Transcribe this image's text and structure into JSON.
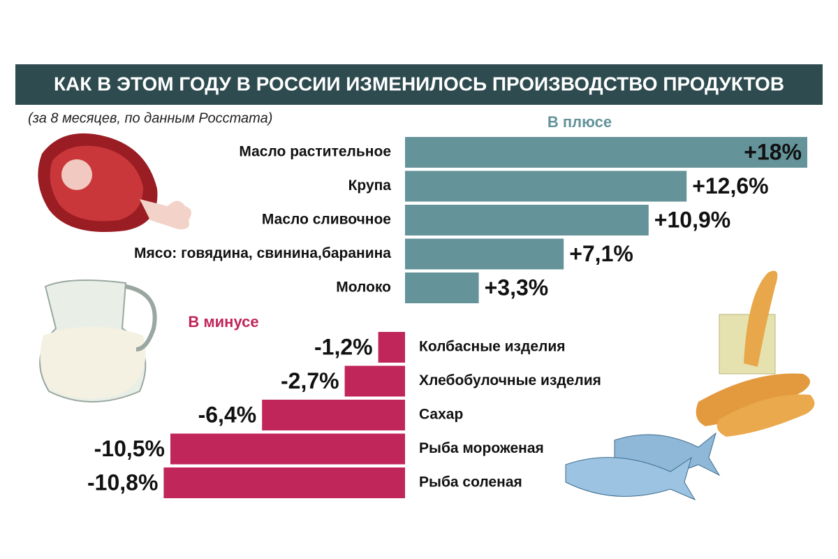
{
  "title": "КАК В ЭТОМ ГОДУ В РОССИИ ИЗМЕНИЛОСЬ ПРОИЗВОДСТВО ПРОДУКТОВ",
  "subtitle": "(за 8 месяцев, по данным Росстата)",
  "chart_data": [
    {
      "type": "bar",
      "orientation": "horizontal",
      "title": "В плюсе",
      "color": "#64939a",
      "categories": [
        "Масло растительное",
        "Крупа",
        "Масло сливочное",
        "Мясо: говядина, свинина,баранина",
        "Молоко"
      ],
      "values": [
        18,
        12.6,
        10.9,
        7.1,
        3.3
      ],
      "value_labels": [
        "+18%",
        "+12,6%",
        "+10,9%",
        "+7,1%",
        "+3,3%"
      ]
    },
    {
      "type": "bar",
      "orientation": "horizontal",
      "title": "В минусе",
      "color": "#c0265a",
      "categories": [
        "Колбасные изделия",
        "Хлебобулочные изделия",
        "Сахар",
        "Рыба мороженая",
        "Рыба соленая"
      ],
      "values": [
        -1.2,
        -2.7,
        -6.4,
        -10.5,
        -10.8
      ],
      "value_labels": [
        "-1,2%",
        "-2,7%",
        "-6,4%",
        "-10,5%",
        "-10,8%"
      ]
    }
  ]
}
